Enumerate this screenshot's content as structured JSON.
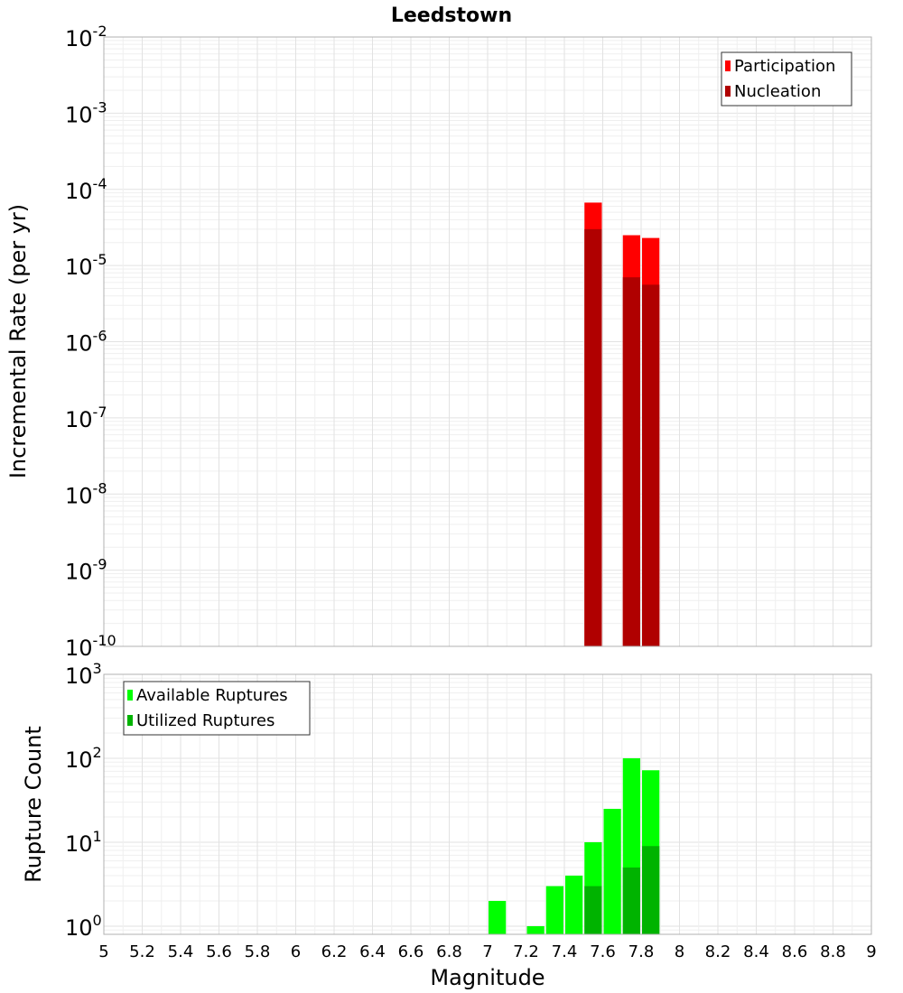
{
  "chart_data": [
    {
      "type": "bar",
      "title": "Leedstown",
      "ylabel": "Incremental Rate (per yr)",
      "yscale": "log",
      "ylim": [
        1e-10,
        0.01
      ],
      "y_tick_labels": [
        {
          "base": "10",
          "exp": "-10"
        },
        {
          "base": "10",
          "exp": "-9"
        },
        {
          "base": "10",
          "exp": "-8"
        },
        {
          "base": "10",
          "exp": "-7"
        },
        {
          "base": "10",
          "exp": "-6"
        },
        {
          "base": "10",
          "exp": "-5"
        },
        {
          "base": "10",
          "exp": "-4"
        },
        {
          "base": "10",
          "exp": "-3"
        },
        {
          "base": "10",
          "exp": "-2"
        }
      ],
      "xlim": [
        5,
        9
      ],
      "grid": true,
      "legend_position": "top-right",
      "series": [
        {
          "name": "Participation",
          "color": "#ff0000",
          "points": [
            {
              "x": 7.55,
              "y": 6.7e-05
            },
            {
              "x": 7.75,
              "y": 2.5e-05
            },
            {
              "x": 7.85,
              "y": 2.3e-05
            }
          ]
        },
        {
          "name": "Nucleation",
          "color": "#b00000",
          "points": [
            {
              "x": 7.55,
              "y": 3e-05
            },
            {
              "x": 7.75,
              "y": 7e-06
            },
            {
              "x": 7.85,
              "y": 5.6e-06
            }
          ]
        }
      ]
    },
    {
      "type": "bar",
      "xlabel": "Magnitude",
      "ylabel": "Rupture Count",
      "yscale": "log",
      "ylim": [
        0.8,
        1000
      ],
      "y_tick_labels": [
        {
          "base": "10",
          "exp": "0"
        },
        {
          "base": "10",
          "exp": "1"
        },
        {
          "base": "10",
          "exp": "2"
        },
        {
          "base": "10",
          "exp": "3"
        }
      ],
      "xlim": [
        5,
        9
      ],
      "x_tick_labels": [
        "5",
        "5.2",
        "5.4",
        "5.6",
        "5.8",
        "6",
        "6.2",
        "6.4",
        "6.6",
        "6.8",
        "7",
        "7.2",
        "7.4",
        "7.6",
        "7.8",
        "8",
        "8.2",
        "8.4",
        "8.6",
        "8.8",
        "9"
      ],
      "grid": true,
      "legend_position": "top-left",
      "series": [
        {
          "name": "Available Ruptures",
          "color": "#00ff00",
          "points": [
            {
              "x": 7.05,
              "y": 2
            },
            {
              "x": 7.25,
              "y": 1
            },
            {
              "x": 7.35,
              "y": 3
            },
            {
              "x": 7.45,
              "y": 4
            },
            {
              "x": 7.55,
              "y": 10
            },
            {
              "x": 7.65,
              "y": 25
            },
            {
              "x": 7.75,
              "y": 100
            },
            {
              "x": 7.85,
              "y": 72
            }
          ]
        },
        {
          "name": "Utilized Ruptures",
          "color": "#00b300",
          "points": [
            {
              "x": 7.55,
              "y": 3
            },
            {
              "x": 7.75,
              "y": 5
            },
            {
              "x": 7.85,
              "y": 9
            }
          ]
        }
      ]
    }
  ]
}
